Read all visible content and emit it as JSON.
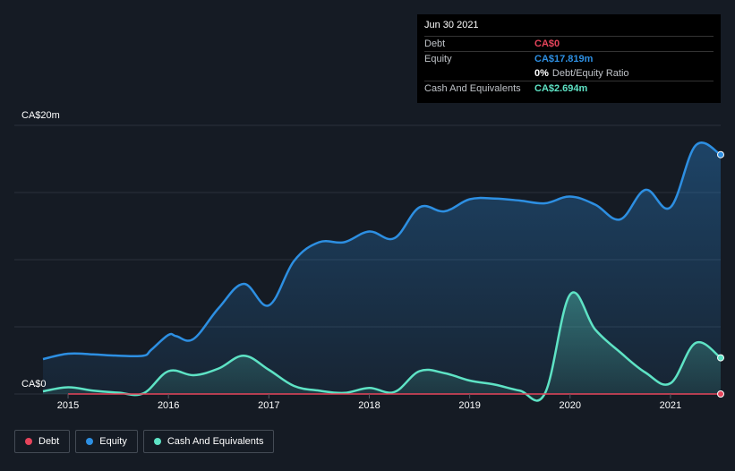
{
  "chart_data": {
    "type": "area",
    "ylabel_top": "CA$20m",
    "ylabel_bottom": "CA$0",
    "ylim": [
      0,
      20
    ],
    "xlim": [
      2014.75,
      2021.5
    ],
    "x_ticks": [
      {
        "value": 2015,
        "label": "2015"
      },
      {
        "value": 2016,
        "label": "2016"
      },
      {
        "value": 2017,
        "label": "2017"
      },
      {
        "value": 2018,
        "label": "2018"
      },
      {
        "value": 2019,
        "label": "2019"
      },
      {
        "value": 2020,
        "label": "2020"
      },
      {
        "value": 2021,
        "label": "2021"
      }
    ],
    "series": [
      {
        "name": "Equity",
        "color": "#2d8fe2",
        "points": [
          [
            2014.75,
            2.6
          ],
          [
            2015.0,
            3.0
          ],
          [
            2015.25,
            2.95
          ],
          [
            2015.5,
            2.85
          ],
          [
            2015.75,
            2.85
          ],
          [
            2015.83,
            3.3
          ],
          [
            2016.0,
            4.4
          ],
          [
            2016.08,
            4.3
          ],
          [
            2016.25,
            4.1
          ],
          [
            2016.5,
            6.4
          ],
          [
            2016.75,
            8.2
          ],
          [
            2017.0,
            6.6
          ],
          [
            2017.25,
            9.9
          ],
          [
            2017.5,
            11.3
          ],
          [
            2017.75,
            11.3
          ],
          [
            2018.0,
            12.1
          ],
          [
            2018.25,
            11.6
          ],
          [
            2018.5,
            13.9
          ],
          [
            2018.75,
            13.6
          ],
          [
            2019.0,
            14.5
          ],
          [
            2019.25,
            14.55
          ],
          [
            2019.5,
            14.4
          ],
          [
            2019.75,
            14.2
          ],
          [
            2020.0,
            14.7
          ],
          [
            2020.25,
            14.1
          ],
          [
            2020.5,
            13.0
          ],
          [
            2020.75,
            15.2
          ],
          [
            2021.0,
            13.9
          ],
          [
            2021.25,
            18.5
          ],
          [
            2021.5,
            17.819
          ]
        ]
      },
      {
        "name": "Cash And Equivalents",
        "color": "#5ee3c5",
        "points": [
          [
            2014.75,
            0.2
          ],
          [
            2015.0,
            0.5
          ],
          [
            2015.25,
            0.25
          ],
          [
            2015.5,
            0.1
          ],
          [
            2015.75,
            0.05
          ],
          [
            2016.0,
            1.7
          ],
          [
            2016.25,
            1.4
          ],
          [
            2016.5,
            1.9
          ],
          [
            2016.75,
            2.85
          ],
          [
            2017.0,
            1.8
          ],
          [
            2017.25,
            0.6
          ],
          [
            2017.5,
            0.25
          ],
          [
            2017.75,
            0.08
          ],
          [
            2018.0,
            0.45
          ],
          [
            2018.25,
            0.15
          ],
          [
            2018.5,
            1.7
          ],
          [
            2018.75,
            1.55
          ],
          [
            2019.0,
            1.0
          ],
          [
            2019.25,
            0.7
          ],
          [
            2019.5,
            0.25
          ],
          [
            2019.75,
            0.05
          ],
          [
            2020.0,
            7.4
          ],
          [
            2020.25,
            4.8
          ],
          [
            2020.5,
            3.1
          ],
          [
            2020.75,
            1.6
          ],
          [
            2021.0,
            0.8
          ],
          [
            2021.25,
            3.8
          ],
          [
            2021.5,
            2.694
          ]
        ]
      },
      {
        "name": "Debt",
        "color": "#e6445b",
        "points": [
          [
            2015.0,
            0
          ],
          [
            2021.5,
            0
          ]
        ]
      }
    ],
    "grid": true
  },
  "tooltip": {
    "date": "Jun 30 2021",
    "debt_label": "Debt",
    "debt_value": "CA$0",
    "equity_label": "Equity",
    "equity_value": "CA$17.819m",
    "ratio_value": "0%",
    "ratio_label": "Debt/Equity Ratio",
    "cash_label": "Cash And Equivalents",
    "cash_value": "CA$2.694m"
  },
  "legend": [
    {
      "label": "Debt",
      "color": "#e6445b"
    },
    {
      "label": "Equity",
      "color": "#2d8fe2"
    },
    {
      "label": "Cash And Equivalents",
      "color": "#5ee3c5"
    }
  ]
}
